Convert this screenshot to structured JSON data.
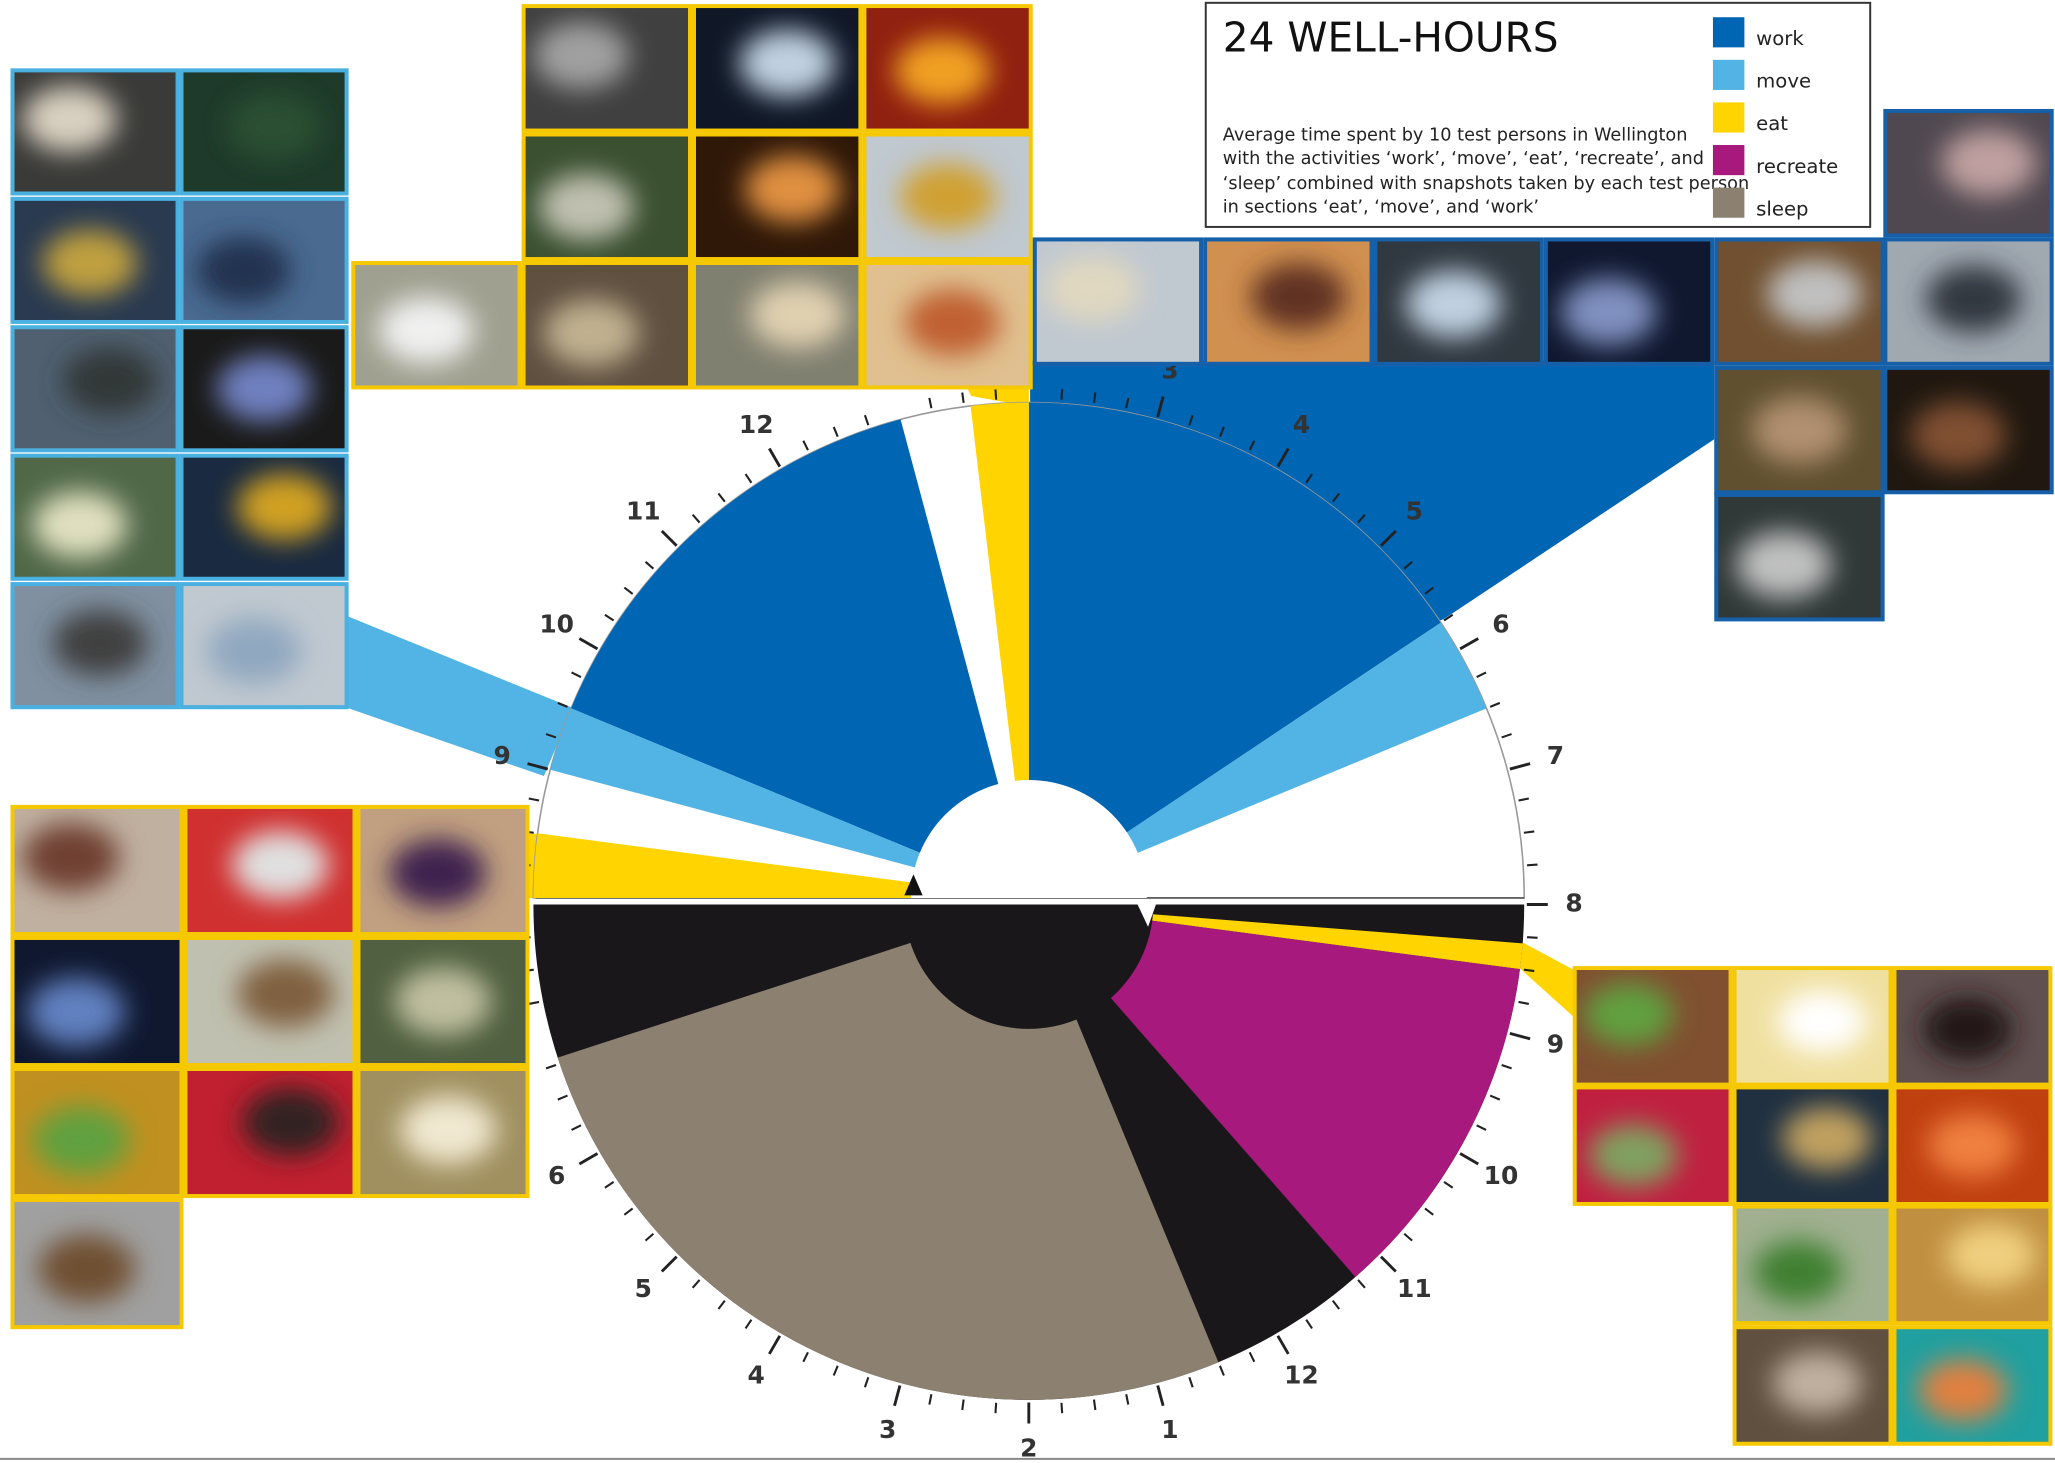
{
  "title": "24 WELL-HOURS",
  "description": [
    "Average time spent by 10 test persons in Wellington",
    "with the activities ‘work’, ‘move’, ‘eat’, ‘recreate’, and",
    "‘sleep’ combined with snapshots taken by each test person",
    "in sections ‘eat’, ‘move’, and ‘work’"
  ],
  "chart_data": {
    "type": "clock",
    "day": {
      "range": [
        8,
        20
      ],
      "ticks": [
        9,
        10,
        11,
        12,
        {
          "value": 15,
          "label": "3"
        },
        {
          "value": 16,
          "label": "4"
        },
        {
          "value": 17,
          "label": "5"
        },
        {
          "value": 18,
          "label": "6"
        },
        {
          "value": 19,
          "label": "7"
        }
      ]
    },
    "night": {
      "range": [
        20,
        32
      ],
      "ticks": [
        {
          "value": 20,
          "label": "8"
        },
        {
          "value": 21,
          "label": "9"
        },
        {
          "value": 22,
          "label": "10"
        },
        {
          "value": 23,
          "label": "11"
        },
        {
          "value": 24,
          "label": "12"
        },
        {
          "value": 25,
          "label": "1"
        },
        {
          "value": 26,
          "label": "2"
        },
        {
          "value": 27,
          "label": "3"
        },
        {
          "value": 28,
          "label": "4"
        },
        {
          "value": 29,
          "label": "5"
        },
        {
          "value": 30,
          "label": "6"
        }
      ]
    },
    "series": [
      {
        "name": "work",
        "color": "#0065b3",
        "day": [
          [
            9.5,
            13
          ],
          [
            14,
            17.75
          ]
        ],
        "night": []
      },
      {
        "name": "move",
        "color": "#52b4e5",
        "day": [
          [
            9,
            9.5
          ],
          [
            17.75,
            18.5
          ]
        ],
        "night": []
      },
      {
        "name": "eat",
        "color": "#ffd400",
        "day": [
          [
            8,
            8.5
          ],
          [
            13.55,
            14
          ]
        ],
        "night": [
          [
            20.3,
            20.5
          ]
        ]
      },
      {
        "name": "recreate",
        "color": "#a8197e",
        "day": [],
        "night": [
          [
            20.5,
            23.25
          ]
        ]
      },
      {
        "name": "sleep",
        "color": "#8c8070",
        "day": [],
        "night": [
          [
            24.5,
            30.8
          ]
        ]
      }
    ]
  }
}
